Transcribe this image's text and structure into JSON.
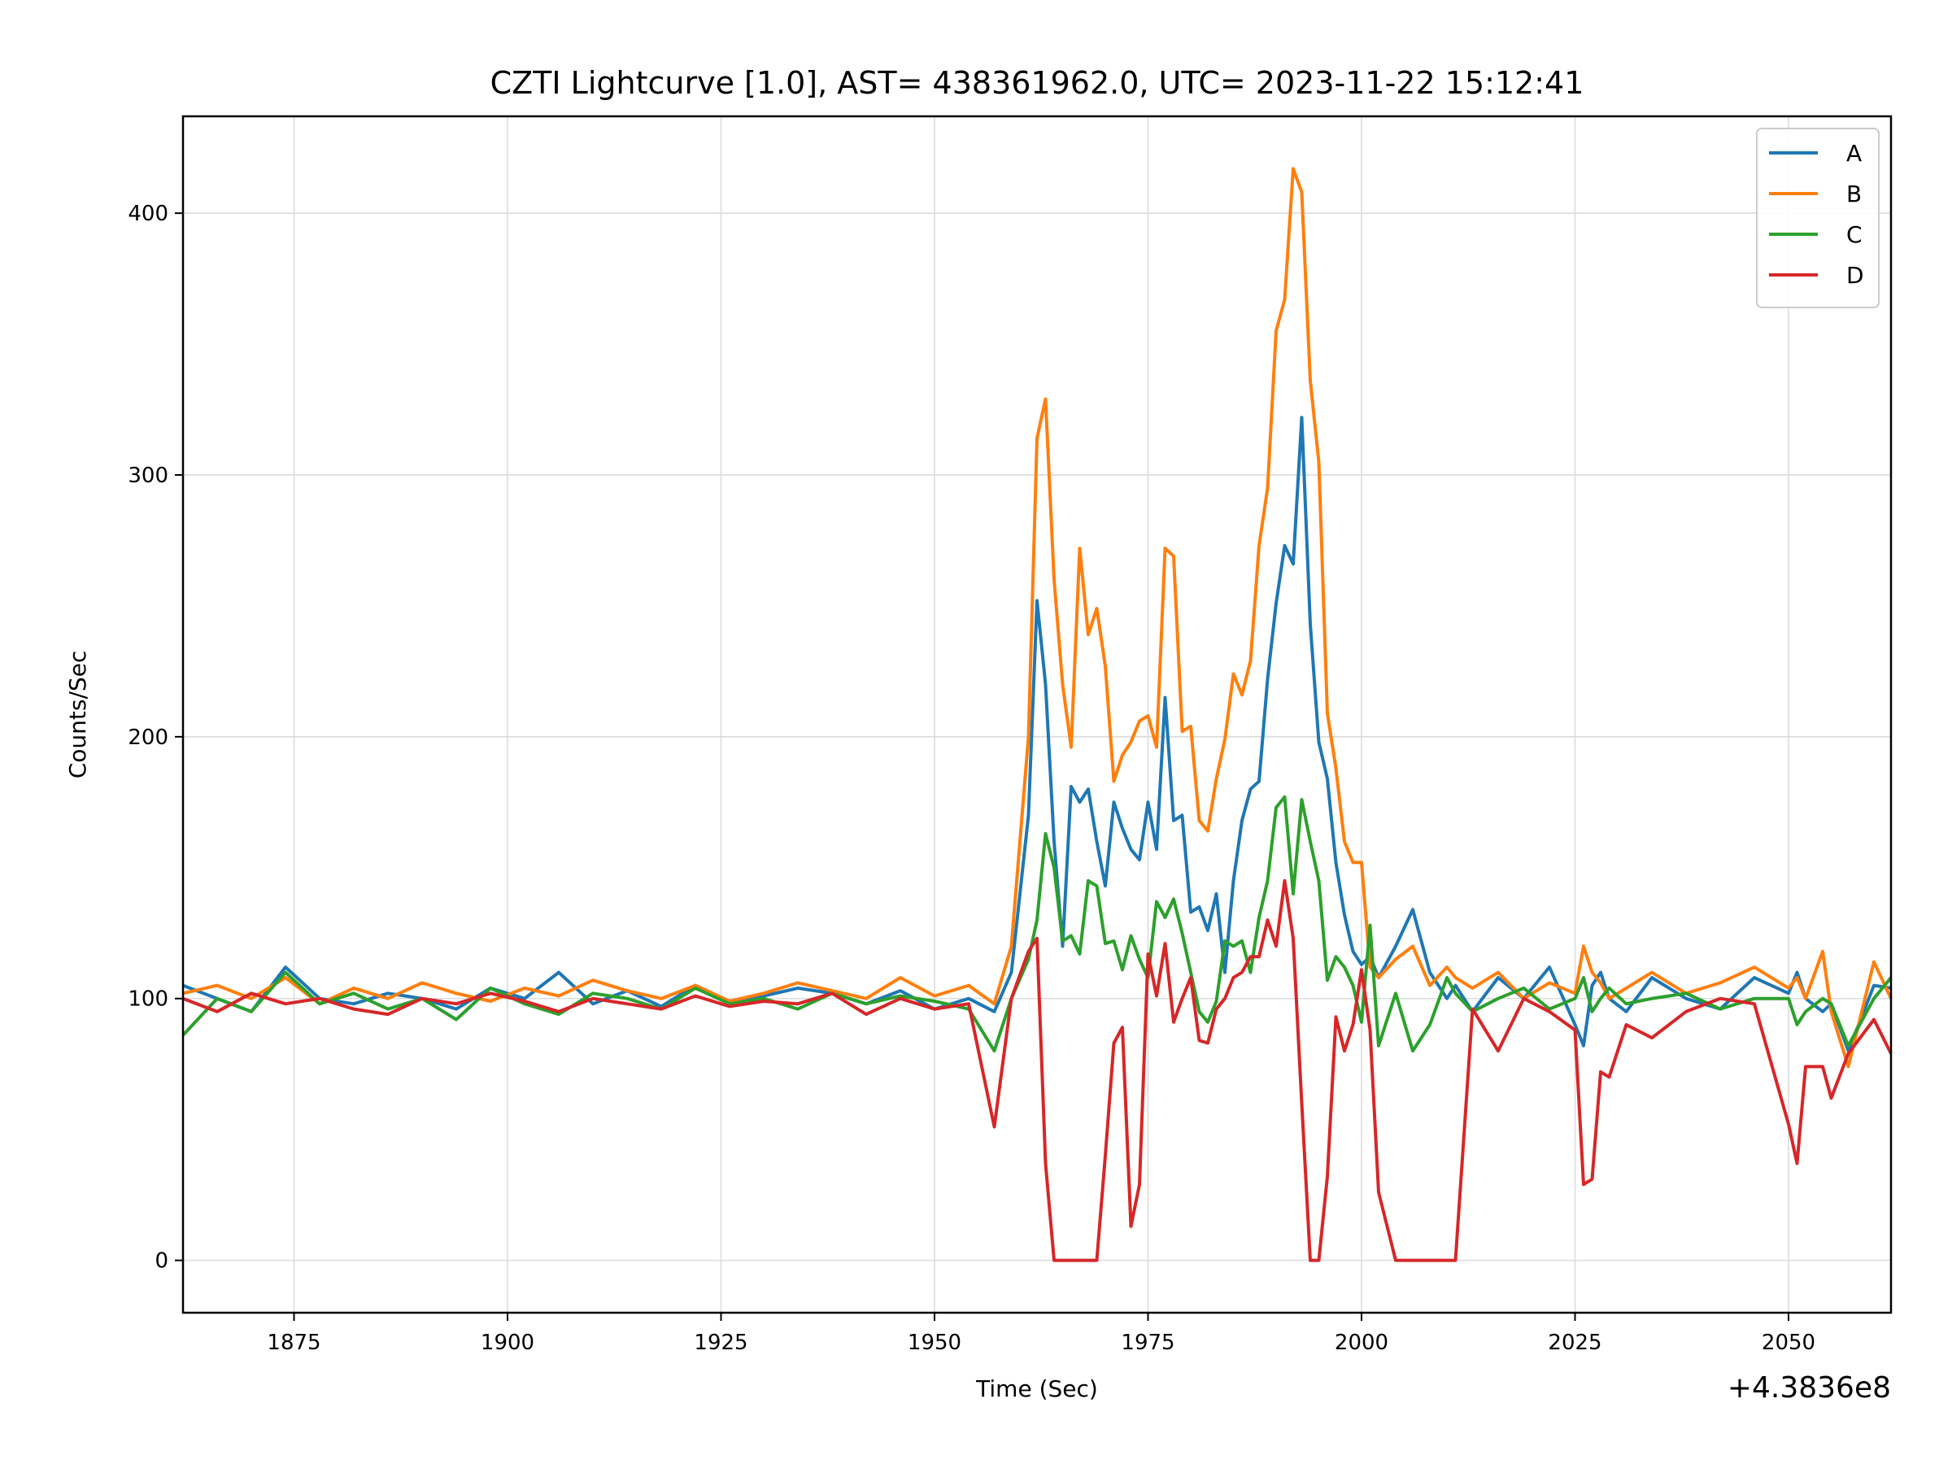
{
  "chart_data": {
    "type": "line",
    "title": "CZTI Lightcurve [1.0], AST= 438361962.0, UTC= 2023-11-22 15:12:41",
    "xlabel": "Time (Sec)",
    "ylabel": "Counts/Sec",
    "x_offset_label": "+4.3836e8",
    "xlim": [
      1862,
      2062
    ],
    "ylim": [
      -20,
      437
    ],
    "x_ticks": [
      1875,
      1900,
      1925,
      1950,
      1975,
      2000,
      2025,
      2050
    ],
    "y_ticks": [
      0,
      100,
      200,
      300,
      400
    ],
    "grid": true,
    "legend_position": "top-right",
    "x": [
      1862,
      1866,
      1870,
      1874,
      1878,
      1882,
      1886,
      1890,
      1894,
      1898,
      1902,
      1906,
      1910,
      1914,
      1918,
      1922,
      1926,
      1930,
      1934,
      1938,
      1942,
      1946,
      1950,
      1954,
      1957,
      1959,
      1961,
      1962,
      1963,
      1964,
      1965,
      1966,
      1967,
      1968,
      1969,
      1970,
      1971,
      1972,
      1973,
      1974,
      1975,
      1976,
      1977,
      1978,
      1979,
      1980,
      1981,
      1982,
      1983,
      1984,
      1985,
      1986,
      1987,
      1988,
      1989,
      1990,
      1991,
      1992,
      1993,
      1994,
      1995,
      1996,
      1997,
      1998,
      1999,
      2000,
      2001,
      2002,
      2004,
      2006,
      2008,
      2010,
      2011,
      2013,
      2016,
      2019,
      2022,
      2025,
      2026,
      2027,
      2028,
      2029,
      2031,
      2034,
      2038,
      2042,
      2046,
      2050,
      2051,
      2052,
      2054,
      2055,
      2057,
      2060,
      2062
    ],
    "series": [
      {
        "name": "A",
        "color": "#1f77b4",
        "values": [
          105,
          100,
          95,
          112,
          100,
          98,
          102,
          100,
          96,
          104,
          100,
          110,
          98,
          103,
          97,
          105,
          99,
          101,
          104,
          102,
          98,
          103,
          96,
          100,
          95,
          110,
          170,
          252,
          220,
          160,
          120,
          181,
          175,
          180,
          160,
          143,
          175,
          165,
          157,
          153,
          175,
          157,
          215,
          168,
          170,
          133,
          135,
          126,
          140,
          110,
          145,
          168,
          180,
          183,
          222,
          251,
          273,
          266,
          322,
          243,
          198,
          184,
          152,
          132,
          118,
          113,
          116,
          108,
          120,
          134,
          110,
          100,
          105,
          95,
          108,
          100,
          112,
          90,
          82,
          105,
          110,
          100,
          95,
          108,
          100,
          96,
          108,
          102,
          110,
          100,
          95,
          98,
          80,
          105,
          104
        ]
      },
      {
        "name": "B",
        "color": "#ff7f0e",
        "values": [
          102,
          105,
          100,
          108,
          98,
          104,
          100,
          106,
          102,
          99,
          104,
          101,
          107,
          103,
          100,
          105,
          99,
          102,
          106,
          103,
          100,
          108,
          101,
          105,
          98,
          120,
          200,
          314,
          329,
          260,
          220,
          196,
          272,
          239,
          249,
          227,
          183,
          193,
          198,
          206,
          208,
          196,
          272,
          269,
          202,
          204,
          168,
          164,
          184,
          199,
          224,
          216,
          229,
          273,
          295,
          355,
          367,
          417,
          408,
          336,
          305,
          209,
          188,
          160,
          152,
          152,
          112,
          108,
          115,
          120,
          105,
          112,
          108,
          104,
          110,
          100,
          106,
          102,
          120,
          110,
          106,
          100,
          104,
          110,
          102,
          106,
          112,
          104,
          108,
          100,
          118,
          95,
          74,
          114,
          100
        ]
      },
      {
        "name": "C",
        "color": "#2ca02c",
        "values": [
          86,
          100,
          95,
          110,
          98,
          102,
          96,
          100,
          92,
          104,
          98,
          94,
          102,
          100,
          96,
          104,
          98,
          100,
          96,
          102,
          98,
          101,
          99,
          96,
          80,
          100,
          115,
          130,
          163,
          150,
          122,
          124,
          117,
          145,
          143,
          121,
          122,
          111,
          124,
          115,
          108,
          137,
          131,
          138,
          125,
          110,
          95,
          91,
          99,
          122,
          120,
          122,
          110,
          131,
          145,
          173,
          177,
          140,
          176,
          160,
          145,
          107,
          116,
          112,
          105,
          91,
          128,
          82,
          102,
          80,
          90,
          108,
          102,
          95,
          100,
          104,
          96,
          100,
          108,
          95,
          100,
          104,
          98,
          100,
          102,
          96,
          100,
          100,
          90,
          95,
          100,
          98,
          82,
          100,
          108
        ]
      },
      {
        "name": "D",
        "color": "#d62728",
        "values": [
          100,
          95,
          102,
          98,
          100,
          96,
          94,
          100,
          98,
          102,
          99,
          95,
          100,
          98,
          96,
          101,
          97,
          99,
          98,
          102,
          94,
          100,
          96,
          98,
          51,
          100,
          118,
          123,
          37,
          0,
          0,
          0,
          0,
          0,
          0,
          40,
          83,
          89,
          13,
          29,
          117,
          101,
          121,
          91,
          100,
          108,
          84,
          83,
          96,
          100,
          108,
          110,
          116,
          116,
          130,
          120,
          145,
          123,
          60,
          0,
          0,
          32,
          93,
          80,
          90,
          111,
          88,
          26,
          0,
          0,
          0,
          0,
          0,
          96,
          80,
          100,
          95,
          88,
          29,
          31,
          72,
          70,
          90,
          85,
          95,
          100,
          98,
          52,
          37,
          74,
          74,
          62,
          79,
          92,
          79
        ]
      }
    ]
  }
}
